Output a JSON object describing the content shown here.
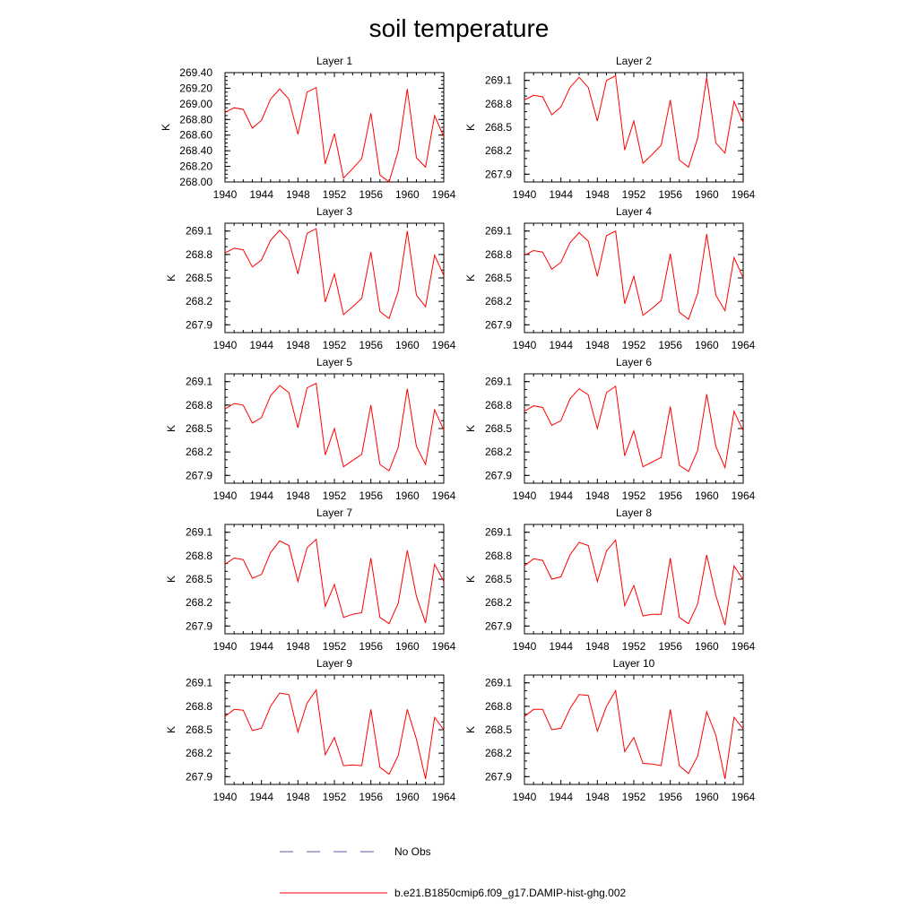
{
  "title": "soil temperature",
  "legend": {
    "items": [
      {
        "label": "No Obs",
        "color": "#5a5aaa",
        "style": "dashed"
      },
      {
        "label": "b.e21.B1850cmip6.f09_g17.DAMIP-hist-ghg.002",
        "color": "#ff0000",
        "style": "solid"
      }
    ]
  },
  "chart_data": [
    {
      "type": "line",
      "title": "Layer 1",
      "ylabel": "K",
      "xlim": [
        1940,
        1964
      ],
      "ylim": [
        268.0,
        269.4
      ],
      "x_ticks": [
        "1940",
        "1944",
        "1948",
        "1952",
        "1956",
        "1960",
        "1964"
      ],
      "y_ticks": [
        "268.00",
        "268.20",
        "268.40",
        "268.60",
        "268.80",
        "269.00",
        "269.20",
        "269.40"
      ],
      "x": [
        1940,
        1941,
        1942,
        1943,
        1944,
        1945,
        1946,
        1947,
        1948,
        1949,
        1950,
        1951,
        1952,
        1953,
        1954,
        1955,
        1956,
        1957,
        1958,
        1959,
        1960,
        1961,
        1962,
        1963,
        1964
      ],
      "series": [
        {
          "values": [
            268.89,
            268.95,
            268.93,
            268.69,
            268.79,
            269.06,
            269.19,
            269.06,
            268.61,
            269.15,
            269.21,
            268.23,
            268.62,
            268.05,
            268.17,
            268.3,
            268.88,
            268.09,
            268.0,
            268.4,
            269.19,
            268.31,
            268.19,
            268.85,
            268.58
          ]
        }
      ]
    },
    {
      "type": "line",
      "title": "Layer 2",
      "ylabel": "K",
      "xlim": [
        1940,
        1964
      ],
      "ylim": [
        267.8,
        269.2
      ],
      "x_ticks": [
        "1940",
        "1944",
        "1948",
        "1952",
        "1956",
        "1960",
        "1964"
      ],
      "y_ticks": [
        "267.9",
        "268.2",
        "268.5",
        "268.8",
        "269.1"
      ],
      "x": [
        1940,
        1941,
        1942,
        1943,
        1944,
        1945,
        1946,
        1947,
        1948,
        1949,
        1950,
        1951,
        1952,
        1953,
        1954,
        1955,
        1956,
        1957,
        1958,
        1959,
        1960,
        1961,
        1962,
        1963,
        1964
      ],
      "series": [
        {
          "values": [
            268.85,
            268.91,
            268.89,
            268.66,
            268.76,
            269.01,
            269.14,
            269.01,
            268.58,
            269.1,
            269.16,
            268.21,
            268.58,
            268.04,
            268.15,
            268.27,
            268.85,
            268.08,
            267.99,
            268.36,
            269.14,
            268.3,
            268.17,
            268.83,
            268.56
          ]
        }
      ]
    },
    {
      "type": "line",
      "title": "Layer 3",
      "ylabel": "K",
      "xlim": [
        1940,
        1964
      ],
      "ylim": [
        267.8,
        269.2
      ],
      "x_ticks": [
        "1940",
        "1944",
        "1948",
        "1952",
        "1956",
        "1960",
        "1964"
      ],
      "y_ticks": [
        "267.9",
        "268.2",
        "268.5",
        "268.8",
        "269.1"
      ],
      "x": [
        1940,
        1941,
        1942,
        1943,
        1944,
        1945,
        1946,
        1947,
        1948,
        1949,
        1950,
        1951,
        1952,
        1953,
        1954,
        1955,
        1956,
        1957,
        1958,
        1959,
        1960,
        1961,
        1962,
        1963,
        1964
      ],
      "series": [
        {
          "values": [
            268.82,
            268.88,
            268.86,
            268.64,
            268.73,
            268.98,
            269.11,
            268.98,
            268.55,
            269.07,
            269.13,
            268.19,
            268.55,
            268.03,
            268.13,
            268.24,
            268.83,
            268.07,
            267.98,
            268.33,
            269.1,
            268.28,
            268.13,
            268.79,
            268.53
          ]
        }
      ]
    },
    {
      "type": "line",
      "title": "Layer 4",
      "ylabel": "K",
      "xlim": [
        1940,
        1964
      ],
      "ylim": [
        267.8,
        269.2
      ],
      "x_ticks": [
        "1940",
        "1944",
        "1948",
        "1952",
        "1956",
        "1960",
        "1964"
      ],
      "y_ticks": [
        "267.9",
        "268.2",
        "268.5",
        "268.8",
        "269.1"
      ],
      "x": [
        1940,
        1941,
        1942,
        1943,
        1944,
        1945,
        1946,
        1947,
        1948,
        1949,
        1950,
        1951,
        1952,
        1953,
        1954,
        1955,
        1956,
        1957,
        1958,
        1959,
        1960,
        1961,
        1962,
        1963,
        1964
      ],
      "series": [
        {
          "values": [
            268.79,
            268.85,
            268.83,
            268.61,
            268.7,
            268.95,
            269.08,
            268.97,
            268.52,
            269.04,
            269.1,
            268.17,
            268.52,
            268.02,
            268.11,
            268.21,
            268.81,
            268.06,
            267.97,
            268.3,
            269.06,
            268.28,
            268.08,
            268.76,
            268.5
          ]
        }
      ]
    },
    {
      "type": "line",
      "title": "Layer 5",
      "ylabel": "K",
      "xlim": [
        1940,
        1964
      ],
      "ylim": [
        267.8,
        269.2
      ],
      "x_ticks": [
        "1940",
        "1944",
        "1948",
        "1952",
        "1956",
        "1960",
        "1964"
      ],
      "y_ticks": [
        "267.9",
        "268.2",
        "268.5",
        "268.8",
        "269.1"
      ],
      "x": [
        1940,
        1941,
        1942,
        1943,
        1944,
        1945,
        1946,
        1947,
        1948,
        1949,
        1950,
        1951,
        1952,
        1953,
        1954,
        1955,
        1956,
        1957,
        1958,
        1959,
        1960,
        1961,
        1962,
        1963,
        1964
      ],
      "series": [
        {
          "values": [
            268.75,
            268.82,
            268.8,
            268.57,
            268.64,
            268.92,
            269.05,
            268.96,
            268.51,
            269.02,
            269.08,
            268.16,
            268.5,
            268.01,
            268.09,
            268.17,
            268.8,
            268.04,
            267.96,
            268.26,
            269.01,
            268.27,
            268.04,
            268.74,
            268.48
          ]
        }
      ]
    },
    {
      "type": "line",
      "title": "Layer 6",
      "ylabel": "K",
      "xlim": [
        1940,
        1964
      ],
      "ylim": [
        267.8,
        269.2
      ],
      "x_ticks": [
        "1940",
        "1944",
        "1948",
        "1952",
        "1956",
        "1960",
        "1964"
      ],
      "y_ticks": [
        "267.9",
        "268.2",
        "268.5",
        "268.8",
        "269.1"
      ],
      "x": [
        1940,
        1941,
        1942,
        1943,
        1944,
        1945,
        1946,
        1947,
        1948,
        1949,
        1950,
        1951,
        1952,
        1953,
        1954,
        1955,
        1956,
        1957,
        1958,
        1959,
        1960,
        1961,
        1962,
        1963,
        1964
      ],
      "series": [
        {
          "values": [
            268.72,
            268.79,
            268.77,
            268.54,
            268.6,
            268.88,
            269.01,
            268.93,
            268.5,
            268.96,
            269.04,
            268.15,
            268.47,
            268.01,
            268.07,
            268.13,
            268.78,
            268.03,
            267.95,
            268.22,
            268.94,
            268.27,
            268.0,
            268.72,
            268.47
          ]
        }
      ]
    },
    {
      "type": "line",
      "title": "Layer 7",
      "ylabel": "K",
      "xlim": [
        1940,
        1964
      ],
      "ylim": [
        267.8,
        269.2
      ],
      "x_ticks": [
        "1940",
        "1944",
        "1948",
        "1952",
        "1956",
        "1960",
        "1964"
      ],
      "y_ticks": [
        "267.9",
        "268.2",
        "268.5",
        "268.8",
        "269.1"
      ],
      "x": [
        1940,
        1941,
        1942,
        1943,
        1944,
        1945,
        1946,
        1947,
        1948,
        1949,
        1950,
        1951,
        1952,
        1953,
        1954,
        1955,
        1956,
        1957,
        1958,
        1959,
        1960,
        1961,
        1962,
        1963,
        1964
      ],
      "series": [
        {
          "values": [
            268.69,
            268.77,
            268.75,
            268.51,
            268.56,
            268.84,
            268.99,
            268.93,
            268.47,
            268.9,
            269.01,
            268.15,
            268.43,
            268.01,
            268.05,
            268.07,
            268.77,
            268.01,
            267.93,
            268.19,
            268.87,
            268.28,
            267.94,
            268.69,
            268.47
          ]
        }
      ]
    },
    {
      "type": "line",
      "title": "Layer 8",
      "ylabel": "K",
      "xlim": [
        1940,
        1964
      ],
      "ylim": [
        267.8,
        269.2
      ],
      "x_ticks": [
        "1940",
        "1944",
        "1948",
        "1952",
        "1956",
        "1960",
        "1964"
      ],
      "y_ticks": [
        "267.9",
        "268.2",
        "268.5",
        "268.8",
        "269.1"
      ],
      "x": [
        1940,
        1941,
        1942,
        1943,
        1944,
        1945,
        1946,
        1947,
        1948,
        1949,
        1950,
        1951,
        1952,
        1953,
        1954,
        1955,
        1956,
        1957,
        1958,
        1959,
        1960,
        1961,
        1962,
        1963,
        1964
      ],
      "series": [
        {
          "values": [
            268.67,
            268.76,
            268.74,
            268.5,
            268.53,
            268.81,
            268.97,
            268.93,
            268.47,
            268.86,
            269.0,
            268.16,
            268.42,
            268.03,
            268.05,
            268.05,
            268.77,
            268.01,
            267.93,
            268.18,
            268.81,
            268.29,
            267.91,
            268.67,
            268.49
          ]
        }
      ]
    },
    {
      "type": "line",
      "title": "Layer 9",
      "ylabel": "K",
      "xlim": [
        1940,
        1964
      ],
      "ylim": [
        267.8,
        269.2
      ],
      "x_ticks": [
        "1940",
        "1944",
        "1948",
        "1952",
        "1956",
        "1960",
        "1964"
      ],
      "y_ticks": [
        "267.9",
        "268.2",
        "268.5",
        "268.8",
        "269.1"
      ],
      "x": [
        1940,
        1941,
        1942,
        1943,
        1944,
        1945,
        1946,
        1947,
        1948,
        1949,
        1950,
        1951,
        1952,
        1953,
        1954,
        1955,
        1956,
        1957,
        1958,
        1959,
        1960,
        1961,
        1962,
        1963,
        1964
      ],
      "series": [
        {
          "values": [
            268.67,
            268.76,
            268.75,
            268.49,
            268.52,
            268.8,
            268.97,
            268.95,
            268.47,
            268.84,
            269.01,
            268.18,
            268.4,
            268.04,
            268.05,
            268.04,
            268.76,
            268.02,
            267.93,
            268.17,
            268.76,
            268.38,
            267.87,
            268.66,
            268.5
          ]
        }
      ]
    },
    {
      "type": "line",
      "title": "Layer 10",
      "ylabel": "K",
      "xlim": [
        1940,
        1964
      ],
      "ylim": [
        267.8,
        269.2
      ],
      "x_ticks": [
        "1940",
        "1944",
        "1948",
        "1952",
        "1956",
        "1960",
        "1964"
      ],
      "y_ticks": [
        "267.9",
        "268.2",
        "268.5",
        "268.8",
        "269.1"
      ],
      "x": [
        1940,
        1941,
        1942,
        1943,
        1944,
        1945,
        1946,
        1947,
        1948,
        1949,
        1950,
        1951,
        1952,
        1953,
        1954,
        1955,
        1956,
        1957,
        1958,
        1959,
        1960,
        1961,
        1962,
        1963,
        1964
      ],
      "series": [
        {
          "values": [
            268.67,
            268.76,
            268.76,
            268.5,
            268.52,
            268.77,
            268.95,
            268.94,
            268.48,
            268.8,
            269.0,
            268.22,
            268.4,
            268.07,
            268.06,
            268.04,
            268.76,
            268.04,
            267.94,
            268.16,
            268.73,
            268.43,
            267.87,
            268.66,
            268.51
          ]
        }
      ]
    }
  ]
}
